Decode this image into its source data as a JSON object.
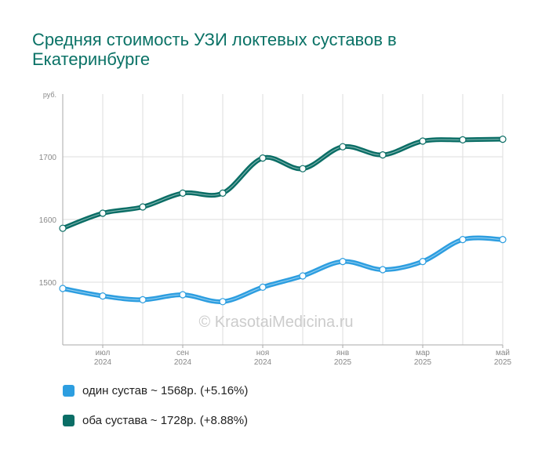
{
  "title": "Средняя стоимость УЗИ локтевых суставов в Екатеринбурге",
  "watermark": "© KrasotaiMedicina.ru",
  "colors": {
    "series1": "#2d9ee0",
    "series2": "#0b6e66",
    "title": "#0a7266",
    "grid": "#dddddd"
  },
  "legend": [
    {
      "label": "один сустав ~ 1568р. (+5.16%)",
      "color": "#2d9ee0"
    },
    {
      "label": "оба сустава ~ 1728р. (+8.88%)",
      "color": "#0b6e66"
    }
  ],
  "chart_data": {
    "type": "line",
    "title": "Средняя стоимость УЗИ локтевых суставов в Екатеринбурге",
    "y_unit": "руб.",
    "ylim": [
      1400,
      1800
    ],
    "y_ticks": [
      1500,
      1600,
      1700
    ],
    "x_labels": [
      {
        "index": 1,
        "month": "июл",
        "year": "2024"
      },
      {
        "index": 3,
        "month": "сен",
        "year": "2024"
      },
      {
        "index": 5,
        "month": "ноя",
        "year": "2024"
      },
      {
        "index": 7,
        "month": "янв",
        "year": "2025"
      },
      {
        "index": 9,
        "month": "мар",
        "year": "2025"
      },
      {
        "index": 11,
        "month": "май",
        "year": "2025"
      }
    ],
    "point_count": 12,
    "grid": true,
    "legend_position": "bottom-left",
    "series": [
      {
        "name": "один сустав",
        "color": "#2d9ee0",
        "values": [
          1490,
          1478,
          1472,
          1480,
          1469,
          1492,
          1510,
          1533,
          1520,
          1533,
          1568,
          1568
        ]
      },
      {
        "name": "оба сустава",
        "color": "#0b6e66",
        "values": [
          1586,
          1610,
          1620,
          1642,
          1642,
          1698,
          1681,
          1716,
          1703,
          1725,
          1727,
          1728
        ]
      }
    ]
  }
}
